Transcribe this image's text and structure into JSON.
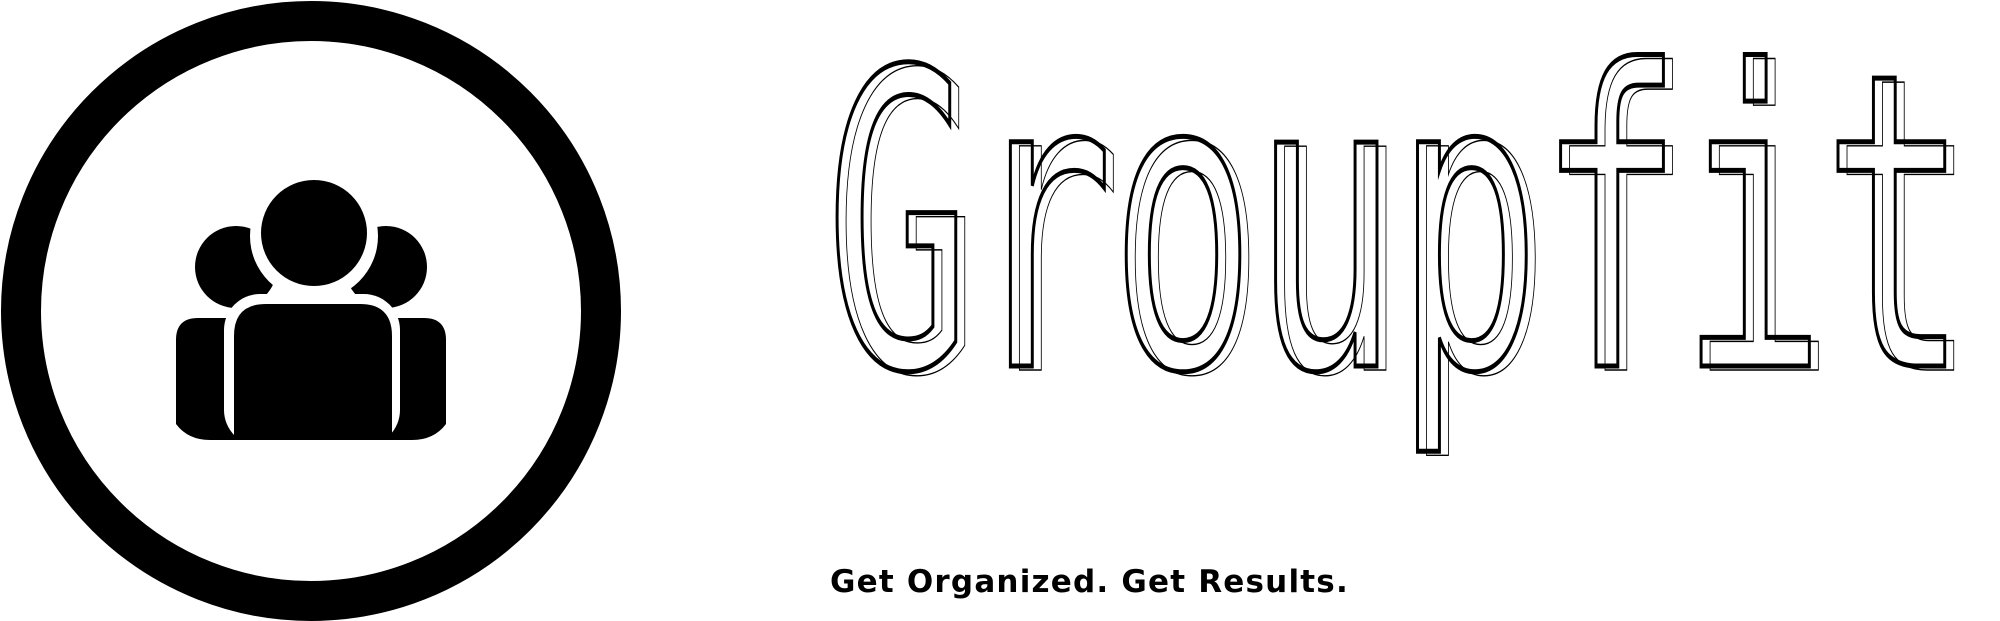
{
  "brand": {
    "name": "Groupfit",
    "tagline": "Get Organized. Get Results.",
    "colors": {
      "ink": "#000000",
      "background": "#ffffff"
    }
  },
  "logo": {
    "icon": "group-people-icon"
  }
}
